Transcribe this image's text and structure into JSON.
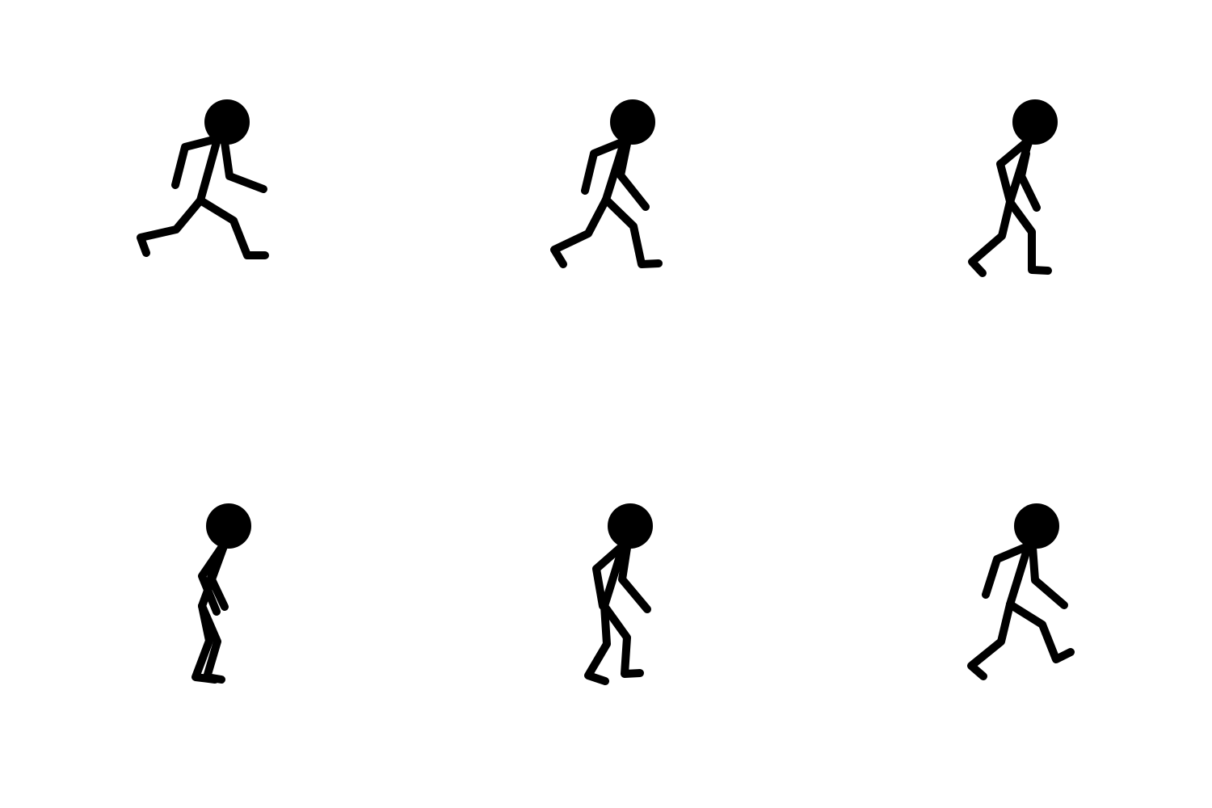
{
  "figure_color": "#000000",
  "background_color": "#ffffff",
  "frames": [
    {
      "name": "frame-1",
      "icon": "stick-figure-run-icon"
    },
    {
      "name": "frame-2",
      "icon": "stick-figure-run-icon"
    },
    {
      "name": "frame-3",
      "icon": "stick-figure-walk-icon"
    },
    {
      "name": "frame-4",
      "icon": "stick-figure-stand-icon"
    },
    {
      "name": "frame-5",
      "icon": "stick-figure-walk-icon"
    },
    {
      "name": "frame-6",
      "icon": "stick-figure-walk-icon"
    }
  ]
}
